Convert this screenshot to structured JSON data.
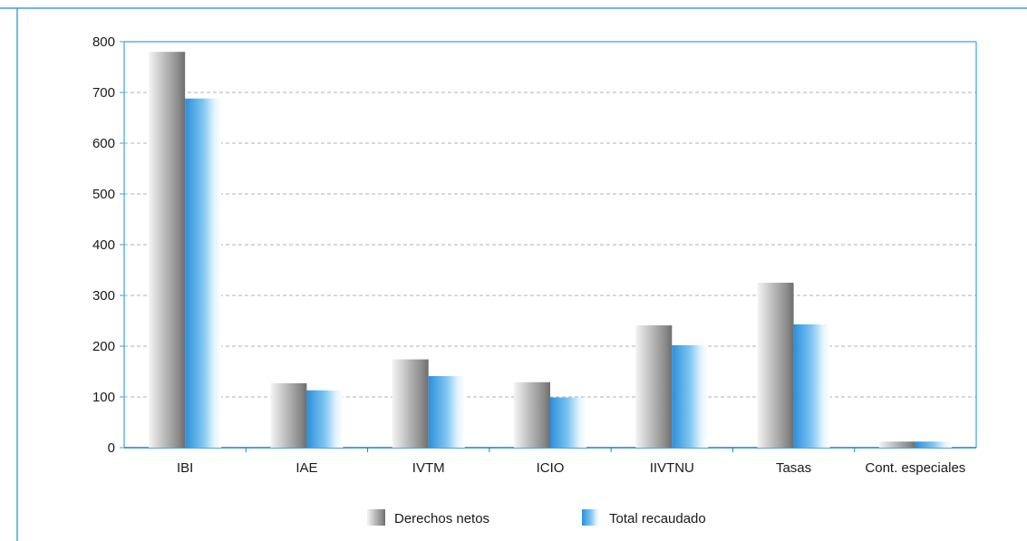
{
  "colors": {
    "frame": "#3ea2e4",
    "grid": "#9a9a9a",
    "axis": "#1a7fd0"
  },
  "chart_data": {
    "type": "bar",
    "categories": [
      "IBI",
      "IAE",
      "IVTM",
      "ICIO",
      "IIVTNU",
      "Tasas",
      "Cont. especiales"
    ],
    "series": [
      {
        "name": "Derechos netos",
        "values": [
          780,
          127,
          174,
          129,
          241,
          325,
          12
        ],
        "color": "gray-gradient"
      },
      {
        "name": "Total recaudado",
        "values": [
          688,
          113,
          141,
          99,
          202,
          243,
          12
        ],
        "color": "blue-gradient"
      }
    ],
    "ylim": [
      0,
      800
    ],
    "yticks": [
      0,
      100,
      200,
      300,
      400,
      500,
      600,
      700,
      800
    ],
    "grid": true,
    "legend": "bottom"
  }
}
